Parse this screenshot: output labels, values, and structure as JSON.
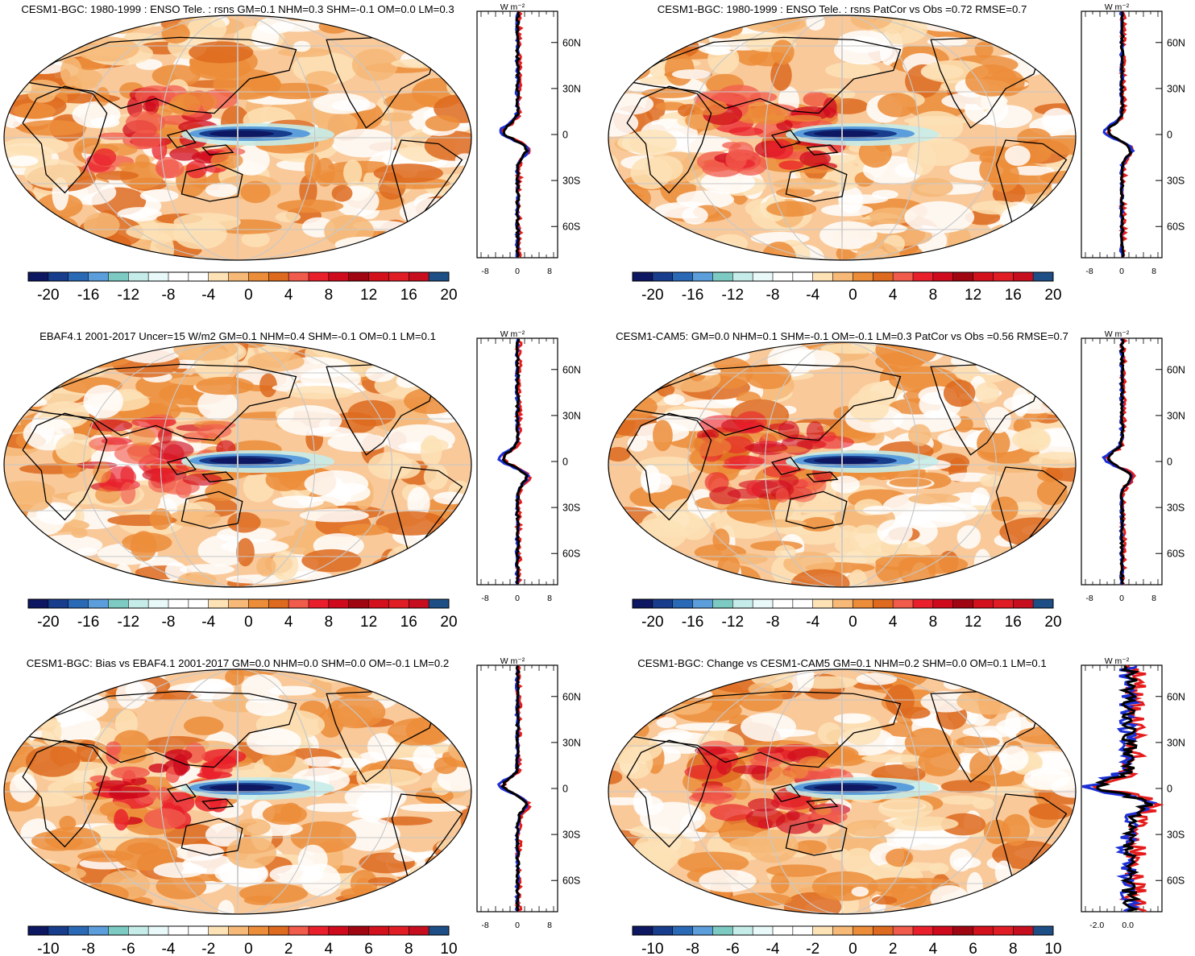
{
  "figure": {
    "unit_label": "W m⁻²",
    "lat_ticks": [
      "60N",
      "30N",
      "0",
      "30S",
      "60S"
    ],
    "colors": {
      "land_outline": "#000000",
      "grid": "#c8c8c8",
      "zonal_model": "#e51b1b",
      "zonal_obs": "#1c2fd6",
      "zonal_diff": "#000000"
    }
  },
  "chart_data": [
    {
      "type": "heatmap",
      "title": "CESM1-BGC: 1980-1999 : ENSO Tele. : rsns GM=0.1 NHM=0.3 SHM=-0.1 OM=0.0 LM=0.3",
      "colorbar": {
        "labels": [
          "-20",
          "-16",
          "-12",
          "-8",
          "-4",
          "0",
          "4",
          "8",
          "12",
          "16",
          "20"
        ],
        "colors": [
          "#0e1761",
          "#173d8c",
          "#2a69b6",
          "#5b9edb",
          "#7ccac2",
          "#c6ece9",
          "#e9f8f8",
          "#ffffff",
          "#ffffff",
          "#fde2b6",
          "#f6b977",
          "#ec8d3a",
          "#dd6a1e",
          "#f15b4c",
          "#e9202b",
          "#cf0a1c",
          "#9f0612",
          "#d3111c",
          "#e01d25",
          "#c60e1f",
          "#1d4e86"
        ]
      },
      "zonal": {
        "xticks": [
          "-8",
          "0",
          "8"
        ],
        "xlim": [
          -10,
          10
        ]
      }
    },
    {
      "type": "heatmap",
      "title": "CESM1-BGC: 1980-1999 : ENSO Tele. : rsns PatCor vs Obs =0.72 RMSE=0.7",
      "colorbar": {
        "labels": [
          "-20",
          "-16",
          "-12",
          "-8",
          "-4",
          "0",
          "4",
          "8",
          "12",
          "16",
          "20"
        ],
        "colors": [
          "#0e1761",
          "#173d8c",
          "#2a69b6",
          "#5b9edb",
          "#7ccac2",
          "#c6ece9",
          "#e9f8f8",
          "#ffffff",
          "#ffffff",
          "#fde2b6",
          "#f6b977",
          "#ec8d3a",
          "#dd6a1e",
          "#f15b4c",
          "#e9202b",
          "#cf0a1c",
          "#9f0612",
          "#d3111c",
          "#e01d25",
          "#c60e1f",
          "#1d4e86"
        ]
      },
      "zonal": {
        "xticks": [
          "-8",
          "0",
          "8"
        ],
        "xlim": [
          -10,
          10
        ]
      }
    },
    {
      "type": "heatmap",
      "title": "EBAF4.1 2001-2017 Uncer=15 W/m2 GM=0.1 NHM=0.4 SHM=-0.1 OM=0.1 LM=0.1",
      "colorbar": {
        "labels": [
          "-20",
          "-16",
          "-12",
          "-8",
          "-4",
          "0",
          "4",
          "8",
          "12",
          "16",
          "20"
        ],
        "colors": [
          "#0e1761",
          "#173d8c",
          "#2a69b6",
          "#5b9edb",
          "#7ccac2",
          "#c6ece9",
          "#e9f8f8",
          "#ffffff",
          "#ffffff",
          "#fde2b6",
          "#f6b977",
          "#ec8d3a",
          "#dd6a1e",
          "#f15b4c",
          "#e9202b",
          "#cf0a1c",
          "#9f0612",
          "#d3111c",
          "#e01d25",
          "#c60e1f",
          "#1d4e86"
        ]
      },
      "zonal": {
        "xticks": [
          "-8",
          "0",
          "8"
        ],
        "xlim": [
          -10,
          10
        ]
      }
    },
    {
      "type": "heatmap",
      "title": "CESM1-CAM5: GM=0.0 NHM=0.1 SHM=-0.1 OM=-0.1 LM=0.3 PatCor vs Obs =0.56 RMSE=0.7",
      "colorbar": {
        "labels": [
          "-20",
          "-16",
          "-12",
          "-8",
          "-4",
          "0",
          "4",
          "8",
          "12",
          "16",
          "20"
        ],
        "colors": [
          "#0e1761",
          "#173d8c",
          "#2a69b6",
          "#5b9edb",
          "#7ccac2",
          "#c6ece9",
          "#e9f8f8",
          "#ffffff",
          "#ffffff",
          "#fde2b6",
          "#f6b977",
          "#ec8d3a",
          "#dd6a1e",
          "#f15b4c",
          "#e9202b",
          "#cf0a1c",
          "#9f0612",
          "#d3111c",
          "#e01d25",
          "#c60e1f",
          "#1d4e86"
        ]
      },
      "zonal": {
        "xticks": [
          "-8",
          "0",
          "8"
        ],
        "xlim": [
          -10,
          10
        ]
      }
    },
    {
      "type": "heatmap",
      "title": "CESM1-BGC: Bias vs EBAF4.1 2001-2017 GM=0.0 NHM=0.0 SHM=0.0 OM=-0.1 LM=0.2",
      "colorbar": {
        "labels": [
          "-10",
          "-8",
          "-6",
          "-4",
          "-2",
          "0",
          "2",
          "4",
          "6",
          "8",
          "10"
        ],
        "colors": [
          "#0e1761",
          "#173d8c",
          "#2a69b6",
          "#5b9edb",
          "#7ccac2",
          "#c6ece9",
          "#e9f8f8",
          "#ffffff",
          "#ffffff",
          "#fde2b6",
          "#f6b977",
          "#ec8d3a",
          "#dd6a1e",
          "#f15b4c",
          "#e9202b",
          "#cf0a1c",
          "#9f0612",
          "#d3111c",
          "#e01d25",
          "#c60e1f",
          "#1d4e86"
        ]
      },
      "zonal": {
        "xticks": [
          "-8",
          "0",
          "8"
        ],
        "xlim": [
          -10,
          10
        ]
      }
    },
    {
      "type": "heatmap",
      "title": "CESM1-BGC: Change vs CESM1-CAM5 GM=0.1 NHM=0.2 SHM=0.0 OM=0.1 LM=0.1",
      "colorbar": {
        "labels": [
          "-10",
          "-8",
          "-6",
          "-4",
          "-2",
          "0",
          "2",
          "4",
          "6",
          "8",
          "10"
        ],
        "colors": [
          "#0e1761",
          "#173d8c",
          "#2a69b6",
          "#5b9edb",
          "#7ccac2",
          "#c6ece9",
          "#e9f8f8",
          "#ffffff",
          "#ffffff",
          "#fde2b6",
          "#f6b977",
          "#ec8d3a",
          "#dd6a1e",
          "#f15b4c",
          "#e9202b",
          "#cf0a1c",
          "#9f0612",
          "#d3111c",
          "#e01d25",
          "#c60e1f",
          "#1d4e86"
        ]
      },
      "zonal": {
        "xticks": [
          "-2.0",
          "0.0"
        ],
        "xlim": [
          -3,
          2.2
        ]
      }
    }
  ]
}
